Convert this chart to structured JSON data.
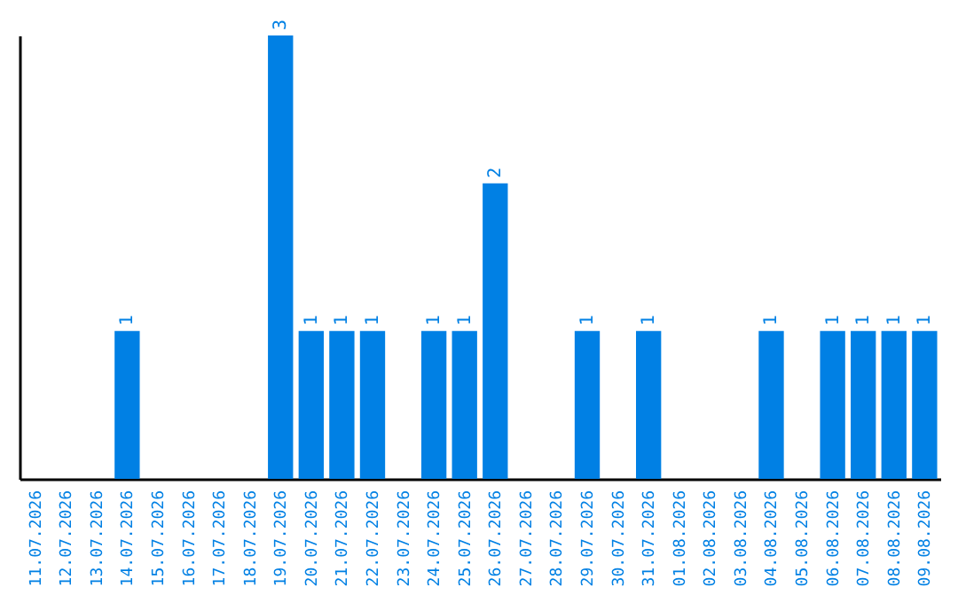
{
  "chart_data": {
    "type": "bar",
    "categories": [
      "11.07.2026",
      "12.07.2026",
      "13.07.2026",
      "14.07.2026",
      "15.07.2026",
      "16.07.2026",
      "17.07.2026",
      "18.07.2026",
      "19.07.2026",
      "20.07.2026",
      "21.07.2026",
      "22.07.2026",
      "23.07.2026",
      "24.07.2026",
      "25.07.2026",
      "26.07.2026",
      "27.07.2026",
      "28.07.2026",
      "29.07.2026",
      "30.07.2026",
      "31.07.2026",
      "01.08.2026",
      "02.08.2026",
      "03.08.2026",
      "04.08.2026",
      "05.08.2026",
      "06.08.2026",
      "07.08.2026",
      "08.08.2026",
      "09.08.2026"
    ],
    "values": [
      0,
      0,
      0,
      1,
      0,
      0,
      0,
      0,
      3,
      1,
      1,
      1,
      0,
      1,
      1,
      2,
      0,
      0,
      1,
      0,
      1,
      0,
      0,
      0,
      1,
      0,
      1,
      1,
      1,
      1
    ],
    "value_labels": [
      null,
      null,
      null,
      "1",
      null,
      null,
      null,
      null,
      "3",
      "1",
      "1",
      "1",
      null,
      "1",
      "1",
      "2",
      null,
      null,
      "1",
      null,
      "1",
      null,
      null,
      null,
      "1",
      null,
      "1",
      "1",
      "1",
      "1"
    ],
    "color": "#0080e4"
  }
}
